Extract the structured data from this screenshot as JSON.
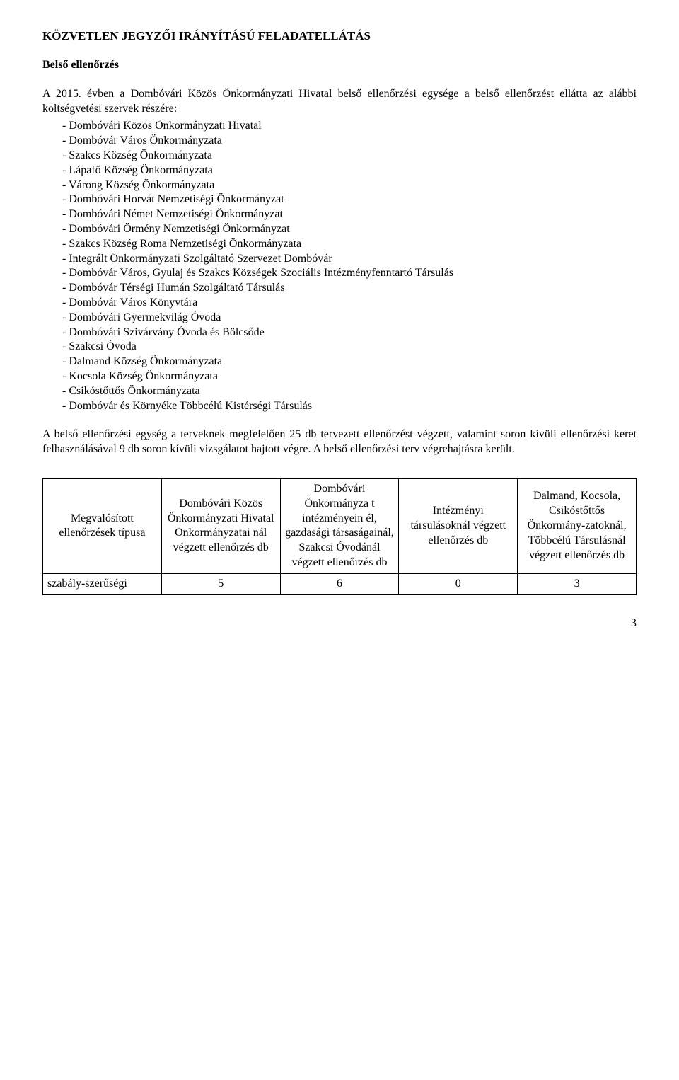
{
  "title": "KÖZVETLEN JEGYZŐI IRÁNYÍTÁSÚ FELADATELLÁTÁS",
  "subtitle": "Belső ellenőrzés",
  "intro": "A 2015. évben a Dombóvári Közös Önkormányzati Hivatal belső ellenőrzési egysége a belső ellenőrzést ellátta az alábbi költségvetési szervek részére:",
  "items": [
    "Dombóvári Közös Önkormányzati Hivatal",
    "Dombóvár Város Önkormányzata",
    "Szakcs Község Önkormányzata",
    "Lápafő Község Önkormányzata",
    "Várong Község Önkormányzata",
    "Dombóvári Horvát Nemzetiségi Önkormányzat",
    "Dombóvári Német Nemzetiségi Önkormányzat",
    "Dombóvári Örmény Nemzetiségi Önkormányzat",
    "Szakcs Község Roma Nemzetiségi Önkormányzata",
    "Integrált Önkormányzati Szolgáltató Szervezet Dombóvár",
    "Dombóvár Város, Gyulaj és Szakcs Községek Szociális Intézményfenntartó Társulás",
    "Dombóvár Térségi Humán Szolgáltató Társulás",
    "Dombóvár Város Könyvtára",
    "Dombóvári Gyermekvilág Óvoda",
    "Dombóvári Szivárvány Óvoda és Bölcsőde",
    "Szakcsi Óvoda",
    "Dalmand Község Önkormányzata",
    "Kocsola Község Önkormányzata",
    "Csikóstőttős Önkormányzata",
    "Dombóvár és Környéke Többcélú Kistérségi Társulás"
  ],
  "summary": "A belső ellenőrzési egység a terveknek megfelelően 25 db tervezett ellenőrzést végzett, valamint soron kívüli ellenőrzési keret felhasználásával 9 db soron kívüli vizsgálatot hajtott végre. A belső ellenőrzési terv végrehajtásra került.",
  "table": {
    "headers": [
      "Megvalósított ellenőrzések típusa",
      "Dombóvári Közös Önkormányzati Hivatal Önkormányzatai nál végzett ellenőrzés db",
      "Dombóvári Önkormányza t intézményein él, gazdasági társaságainál, Szakcsi Óvodánál végzett ellenőrzés db",
      "Intézményi társulásoknál végzett ellenőrzés db",
      "Dalmand, Kocsola, Csikóstőttős Önkormány-zatoknál, Többcélú Társulásnál végzett ellenőrzés db"
    ],
    "row": {
      "label": "szabály-szerűségi",
      "values": [
        "5",
        "6",
        "0",
        "3"
      ]
    }
  },
  "pagenum": "3"
}
